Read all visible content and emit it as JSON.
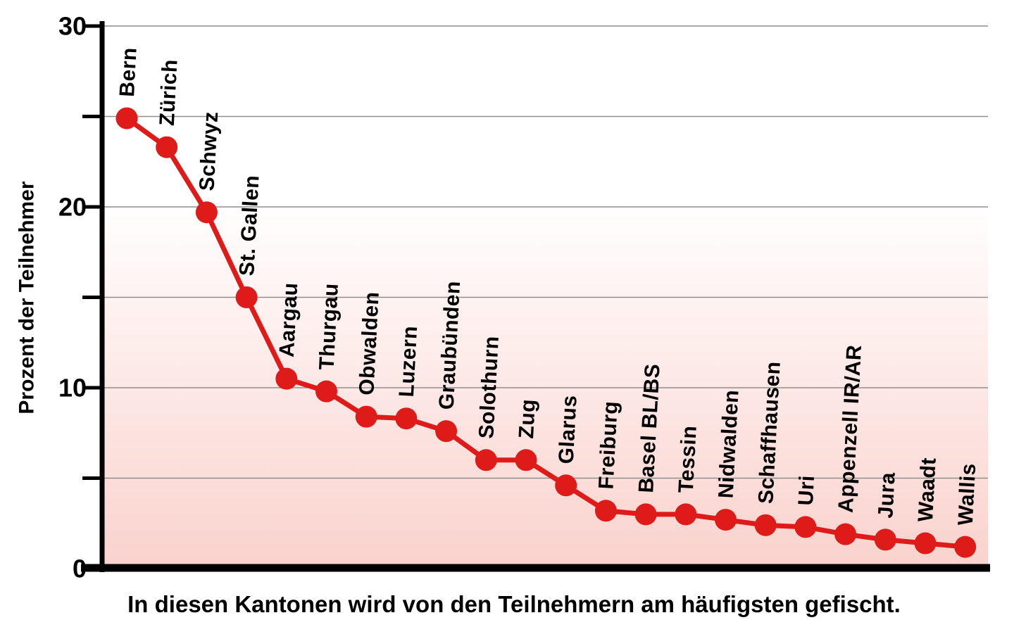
{
  "chart_data": {
    "type": "line",
    "categories": [
      "Bern",
      "Zürich",
      "Schwyz",
      "St. Gallen",
      "Aargau",
      "Thurgau",
      "Obwalden",
      "Luzern",
      "Graubünden",
      "Solothurn",
      "Zug",
      "Glarus",
      "Freiburg",
      "Basel BL/BS",
      "Tessin",
      "Nidwalden",
      "Schaffhausen",
      "Uri",
      "Appenzell IR/AR",
      "Jura",
      "Waadt",
      "Wallis"
    ],
    "values": [
      24.9,
      23.3,
      19.7,
      15.0,
      10.5,
      9.8,
      8.4,
      8.3,
      7.6,
      6.0,
      6.0,
      4.6,
      3.2,
      3.0,
      3.0,
      2.7,
      2.4,
      2.3,
      1.9,
      1.6,
      1.4,
      1.2
    ],
    "ylabel": "Prozent der Teilnehmer",
    "xlabel": "",
    "caption": "In diesen Kantonen wird von den Teilnehmern am häufigsten gefischt.",
    "ylim": [
      0,
      30
    ],
    "yticks": [
      0,
      5,
      10,
      15,
      20,
      25,
      30
    ],
    "yticks_labeled": [
      0,
      10,
      20,
      30
    ],
    "grid": true,
    "legend_position": "none",
    "point_label_rotation_deg": -87,
    "colors": {
      "line": "#de1b18",
      "dot": "#de1b18",
      "grid": "#8f8f8f",
      "axis": "#000000",
      "plot_gradient_top": "#ffffff",
      "plot_gradient_bottom": "#fad2cd"
    }
  }
}
